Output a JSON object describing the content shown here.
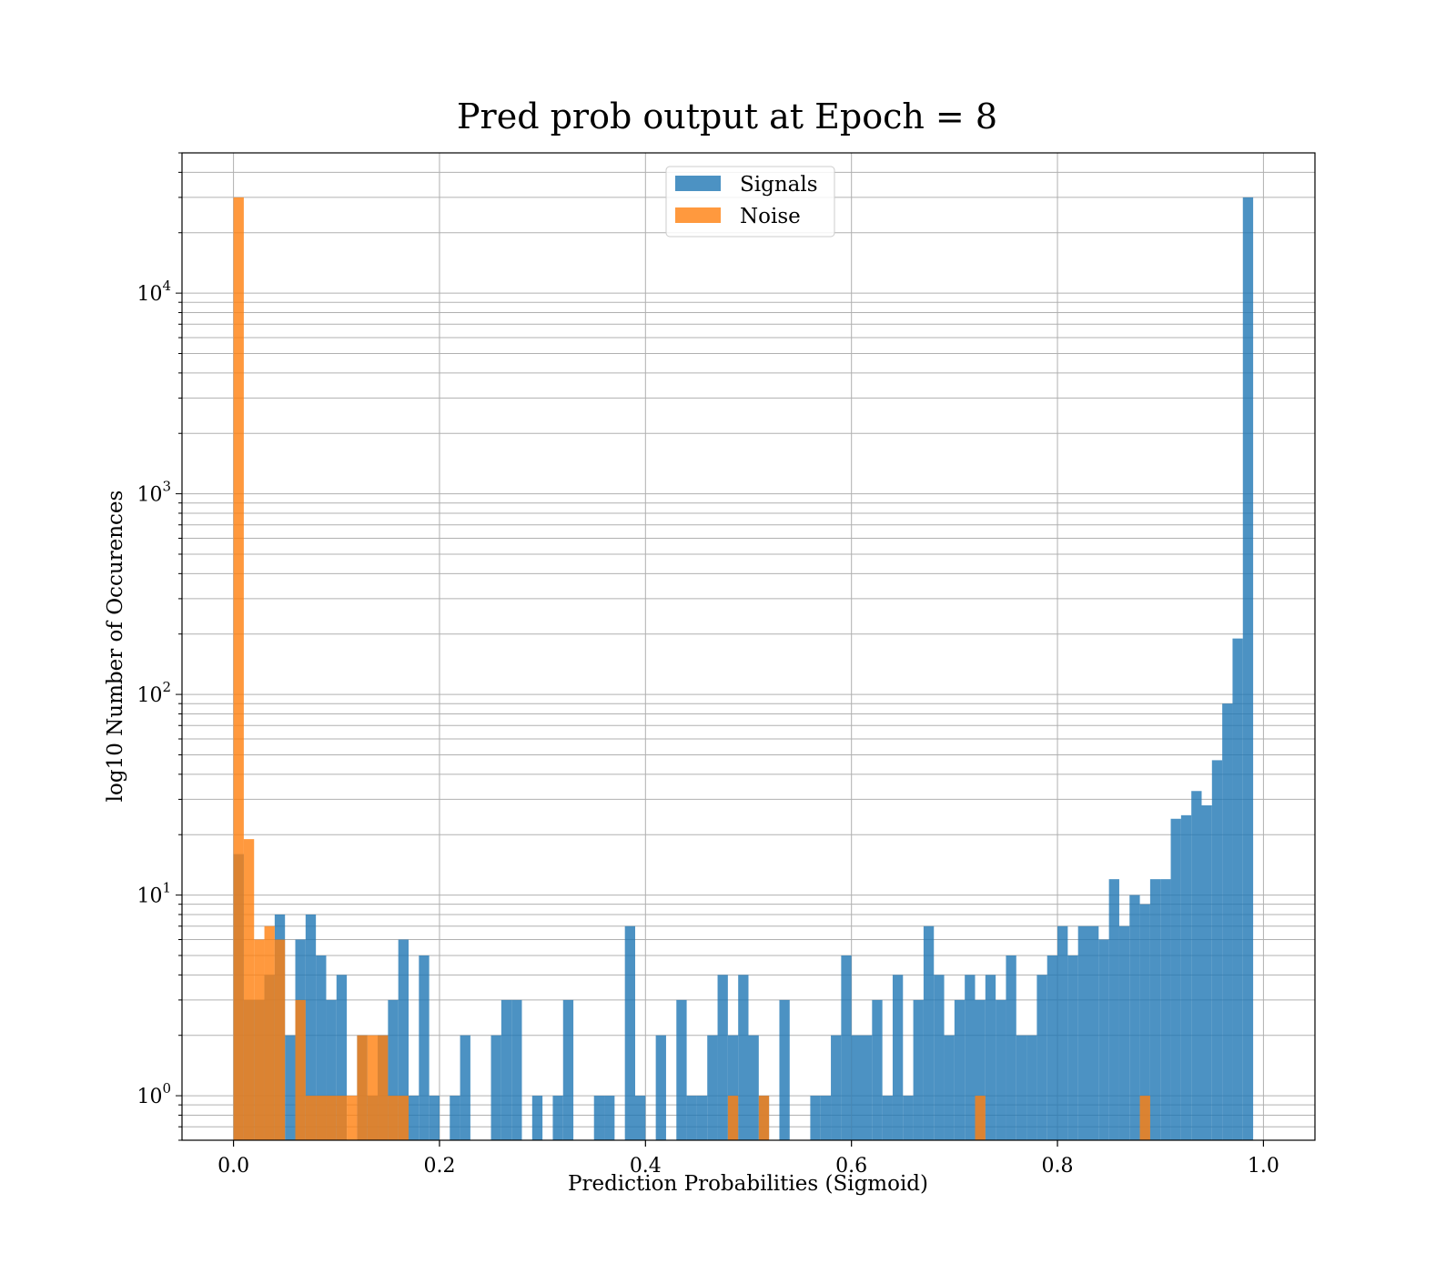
{
  "chart_data": {
    "type": "bar",
    "title": "Pred prob output at Epoch = 8",
    "xlabel": "Prediction Probabilities (Sigmoid)",
    "ylabel": "log10 Number of Occurences",
    "xlim": [
      -0.05,
      1.05
    ],
    "ylim": [
      0.6,
      50000
    ],
    "yscale": "log",
    "grid": true,
    "legend_position": "top-center",
    "x_ticks": [
      0.0,
      0.2,
      0.4,
      0.6,
      0.8,
      1.0
    ],
    "x_tick_labels": [
      "0.0",
      "0.2",
      "0.4",
      "0.6",
      "0.8",
      "1.0"
    ],
    "y_ticks": [
      {
        "value": 1,
        "base": "10",
        "exp": "0"
      },
      {
        "value": 10,
        "base": "10",
        "exp": "1"
      },
      {
        "value": 100,
        "base": "10",
        "exp": "2"
      },
      {
        "value": 1000,
        "base": "10",
        "exp": "3"
      },
      {
        "value": 10000,
        "base": "10",
        "exp": "4"
      }
    ],
    "bin_width": 0.01,
    "series": [
      {
        "name": "Signals",
        "color": "#1f77b4",
        "bin_starts": [
          0.0,
          0.01,
          0.02,
          0.03,
          0.04,
          0.05,
          0.06,
          0.07,
          0.08,
          0.09,
          0.1,
          0.12,
          0.13,
          0.14,
          0.15,
          0.16,
          0.17,
          0.18,
          0.19,
          0.21,
          0.22,
          0.25,
          0.26,
          0.27,
          0.29,
          0.31,
          0.32,
          0.35,
          0.36,
          0.38,
          0.39,
          0.41,
          0.43,
          0.44,
          0.45,
          0.46,
          0.47,
          0.48,
          0.49,
          0.5,
          0.51,
          0.53,
          0.56,
          0.57,
          0.58,
          0.59,
          0.6,
          0.61,
          0.62,
          0.63,
          0.64,
          0.65,
          0.66,
          0.67,
          0.68,
          0.69,
          0.7,
          0.71,
          0.72,
          0.73,
          0.74,
          0.75,
          0.76,
          0.77,
          0.78,
          0.79,
          0.8,
          0.81,
          0.82,
          0.83,
          0.84,
          0.85,
          0.86,
          0.87,
          0.88,
          0.89,
          0.9,
          0.91,
          0.92,
          0.93,
          0.94,
          0.95,
          0.96,
          0.97,
          0.98,
          0.99
        ],
        "values": [
          16,
          3,
          3,
          4,
          8,
          2,
          6,
          8,
          5,
          3,
          4,
          2,
          1,
          2,
          3,
          6,
          1,
          5,
          1,
          1,
          2,
          2,
          3,
          3,
          1,
          1,
          3,
          1,
          1,
          7,
          1,
          2,
          3,
          1,
          1,
          2,
          4,
          2,
          4,
          2,
          1,
          3,
          1,
          1,
          2,
          5,
          2,
          2,
          3,
          1,
          4,
          1,
          3,
          7,
          4,
          2,
          3,
          4,
          3,
          4,
          3,
          5,
          2,
          2,
          4,
          5,
          7,
          5,
          7,
          7,
          6,
          12,
          7,
          10,
          9,
          12,
          12,
          24,
          25,
          33,
          28,
          47,
          90,
          190,
          30000,
          0
        ]
      },
      {
        "name": "Noise",
        "color": "#ff7f0e",
        "bin_starts": [
          0.0,
          0.01,
          0.02,
          0.03,
          0.04,
          0.06,
          0.07,
          0.08,
          0.09,
          0.1,
          0.11,
          0.12,
          0.13,
          0.14,
          0.15,
          0.16,
          0.48,
          0.51,
          0.72,
          0.88
        ],
        "values": [
          30000,
          19,
          6,
          7,
          6,
          3,
          1,
          1,
          1,
          1,
          1,
          2,
          2,
          2,
          1,
          1,
          1,
          1,
          1,
          1
        ]
      }
    ]
  }
}
